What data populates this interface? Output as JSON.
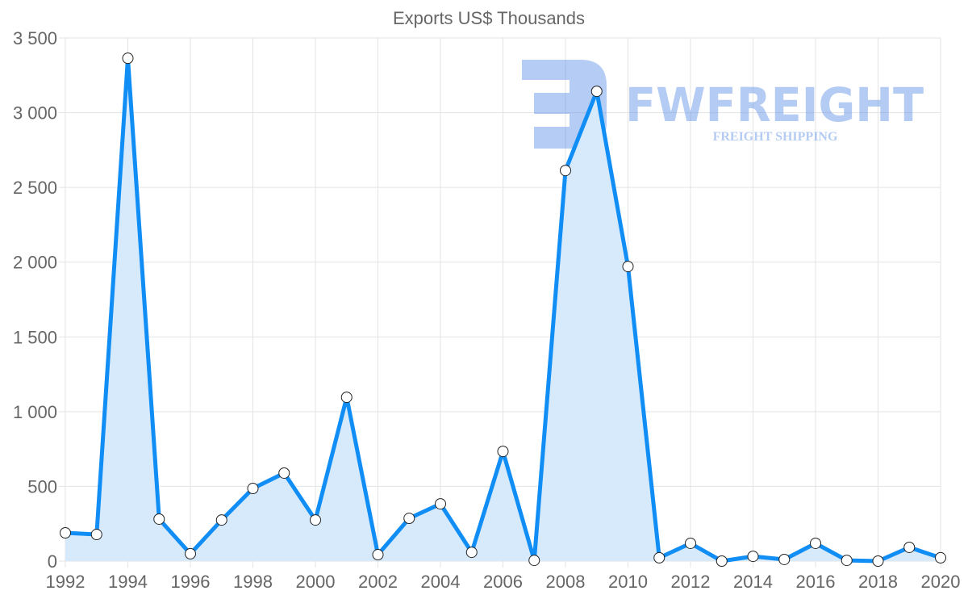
{
  "chart_data": {
    "type": "line",
    "title": "Exports US$ Thousands",
    "xlabel": "",
    "ylabel": "",
    "x": [
      1992,
      1993,
      1994,
      1995,
      1996,
      1997,
      1998,
      1999,
      2000,
      2001,
      2002,
      2003,
      2004,
      2005,
      2006,
      2007,
      2008,
      2009,
      2010,
      2011,
      2012,
      2013,
      2014,
      2015,
      2016,
      2017,
      2018,
      2019,
      2020
    ],
    "series": [
      {
        "name": "Exports US$ Thousands",
        "values": [
          189,
          178,
          3364,
          281,
          49,
          275,
          486,
          589,
          275,
          1096,
          43,
          286,
          383,
          59,
          734,
          5,
          2613,
          3143,
          1971,
          22,
          119,
          0,
          32,
          11,
          119,
          5,
          0,
          92,
          22
        ]
      }
    ],
    "ylim": [
      0,
      3500
    ],
    "xlim": [
      1992,
      2020
    ],
    "yticks": [
      0,
      500,
      1000,
      1500,
      2000,
      2500,
      3000,
      3500
    ],
    "ytick_labels": [
      "0",
      "500",
      "1 000",
      "1 500",
      "2 000",
      "2 500",
      "3 000",
      "3 500"
    ],
    "xticks": [
      "1992",
      "1994",
      "1996",
      "1998",
      "2000",
      "2002",
      "2004",
      "2006",
      "2008",
      "2010",
      "2012",
      "2014",
      "2016",
      "2018",
      "2020"
    ],
    "grid": true,
    "fill": true,
    "colors": {
      "line": "#118ef5",
      "fill": "#d6eafc",
      "grid": "#e3e3e3"
    }
  },
  "watermark": {
    "brand": "FWFREIGHT",
    "tagline": "FREIGHT SHIPPING"
  }
}
